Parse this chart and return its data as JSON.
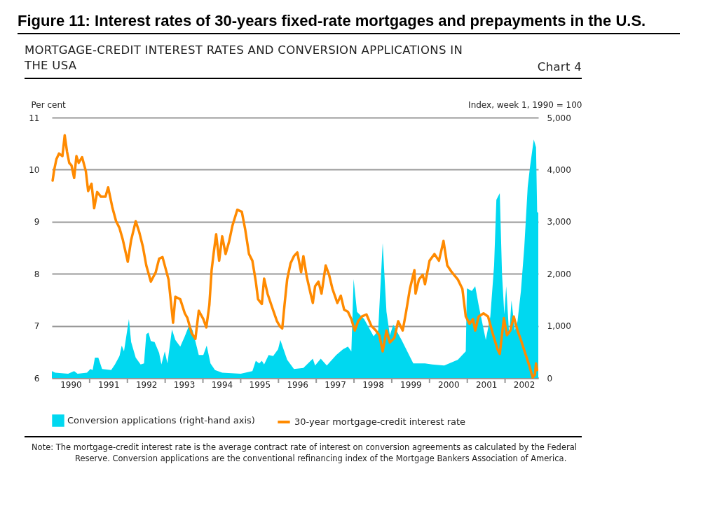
{
  "chart_data": {
    "type": "line",
    "title": "Figure 11: Interest rates of 30-years fixed-rate mortgages and prepayments in the U.S.",
    "subtitle": "MORTGAGE-CREDIT INTEREST RATES AND CONVERSION APPLICATIONS IN THE USA",
    "ylabel": "Per cent",
    "y2label": "Index, week 1, 1990 = 100",
    "annotations": [
      "Chart 4",
      "Note: The mortgage-credit interest rate is the average contract rate of interest on conversion agreements as calculated by the Federal Reserve. Conversion applications are the conventional refinancing index of the Mortgage Bankers Association of America."
    ],
    "xlim": [
      1990,
      2002.88
    ],
    "xticks": [
      {
        "value": 1990.5,
        "label": "1990"
      },
      {
        "value": 1991,
        "label": null
      },
      {
        "value": 1991.5,
        "label": "1991"
      },
      {
        "value": 1992,
        "label": null
      },
      {
        "value": 1992.5,
        "label": "1992"
      },
      {
        "value": 1993,
        "label": null
      },
      {
        "value": 1993.5,
        "label": "1993"
      },
      {
        "value": 1994,
        "label": null
      },
      {
        "value": 1994.5,
        "label": "1994"
      },
      {
        "value": 1995,
        "label": null
      },
      {
        "value": 1995.5,
        "label": "1995"
      },
      {
        "value": 1996,
        "label": null
      },
      {
        "value": 1996.5,
        "label": "1996"
      },
      {
        "value": 1997,
        "label": null
      },
      {
        "value": 1997.5,
        "label": "1997"
      },
      {
        "value": 1998,
        "label": null
      },
      {
        "value": 1998.5,
        "label": "1998"
      },
      {
        "value": 1999,
        "label": null
      },
      {
        "value": 1999.5,
        "label": "1999"
      },
      {
        "value": 2000,
        "label": null
      },
      {
        "value": 2000.5,
        "label": "2000"
      },
      {
        "value": 2001,
        "label": null
      },
      {
        "value": 2001.5,
        "label": "2001"
      },
      {
        "value": 2002,
        "label": null
      },
      {
        "value": 2002.5,
        "label": "2002"
      }
    ],
    "ylim": [
      6,
      11
    ],
    "yticks": [
      6,
      7,
      8,
      9,
      10,
      11
    ],
    "y2lim": [
      0,
      5000
    ],
    "y2ticks": [
      0,
      {
        "value": 1000,
        "label": "1,000"
      },
      {
        "value": 2000,
        "label": "2,000"
      },
      {
        "value": 3000,
        "label": "3,000"
      },
      {
        "value": 4000,
        "label": "4,000"
      },
      {
        "value": 5000,
        "label": "5,000"
      }
    ],
    "grid": "y",
    "legend": "bottom",
    "series": [
      {
        "name": "Conversion applications (right-hand axis)",
        "type": "area",
        "axis": "y2",
        "color": "#00d8f0",
        "x": [
          1990.0,
          1990.09,
          1990.43,
          1990.59,
          1990.68,
          1990.93,
          1991.02,
          1991.08,
          1991.14,
          1991.23,
          1991.33,
          1991.57,
          1991.67,
          1991.79,
          1991.85,
          1991.91,
          1992.04,
          1992.1,
          1992.22,
          1992.35,
          1992.44,
          1992.5,
          1992.56,
          1992.62,
          1992.72,
          1992.84,
          1992.9,
          1992.99,
          1993.06,
          1993.18,
          1993.27,
          1993.4,
          1993.52,
          1993.64,
          1993.73,
          1993.89,
          1994.01,
          1994.1,
          1994.2,
          1994.32,
          1994.51,
          1995.0,
          1995.31,
          1995.4,
          1995.49,
          1995.56,
          1995.62,
          1995.74,
          1995.86,
          1995.99,
          1996.05,
          1996.23,
          1996.41,
          1996.66,
          1996.91,
          1996.97,
          1997.12,
          1997.28,
          1997.53,
          1997.71,
          1997.84,
          1997.93,
          1997.99,
          1998.08,
          1998.27,
          1998.52,
          1998.64,
          1998.76,
          1998.86,
          1998.95,
          1999.04,
          1999.26,
          1999.41,
          1999.57,
          1999.88,
          2000.07,
          2000.39,
          2000.75,
          2000.96,
          2000.99,
          2001.12,
          2001.21,
          2001.3,
          2001.49,
          2001.61,
          2001.71,
          2001.77,
          2001.86,
          2001.92,
          2001.98,
          2002.03,
          2002.11,
          2002.17,
          2002.26,
          2002.33,
          2002.42,
          2002.51,
          2002.6,
          2002.66,
          2002.76,
          2002.82,
          2002.85,
          2002.88
        ],
        "values": [
          130,
          100,
          80,
          130,
          80,
          100,
          170,
          150,
          390,
          390,
          170,
          150,
          260,
          420,
          620,
          510,
          1130,
          690,
          390,
          260,
          280,
          840,
          870,
          710,
          690,
          480,
          260,
          510,
          280,
          930,
          730,
          600,
          800,
          1020,
          910,
          440,
          440,
          620,
          280,
          150,
          100,
          80,
          130,
          330,
          280,
          330,
          260,
          440,
          420,
          550,
          730,
          350,
          170,
          190,
          370,
          240,
          370,
          240,
          440,
          550,
          600,
          510,
          1900,
          1270,
          1130,
          800,
          910,
          2590,
          1270,
          820,
          1020,
          730,
          510,
          280,
          280,
          260,
          240,
          350,
          510,
          1720,
          1670,
          1760,
          1400,
          730,
          1180,
          2160,
          3420,
          3550,
          1990,
          1220,
          1760,
          820,
          1490,
          910,
          1090,
          1670,
          2520,
          3670,
          4050,
          4580,
          4430,
          3190,
          3170
        ]
      },
      {
        "name": "30-year mortgage-credit interest rate",
        "type": "line",
        "color": "#ff8a00",
        "x": [
          1990.02,
          1990.06,
          1990.12,
          1990.19,
          1990.28,
          1990.34,
          1990.4,
          1990.46,
          1990.52,
          1990.59,
          1990.65,
          1990.71,
          1990.8,
          1990.9,
          1990.96,
          1991.05,
          1991.12,
          1991.2,
          1991.3,
          1991.42,
          1991.49,
          1991.6,
          1991.7,
          1991.79,
          1991.88,
          1992.01,
          1992.1,
          1992.22,
          1992.31,
          1992.41,
          1992.5,
          1992.62,
          1992.75,
          1992.84,
          1992.93,
          1993.09,
          1993.21,
          1993.27,
          1993.4,
          1993.52,
          1993.59,
          1993.7,
          1993.8,
          1993.89,
          1994.01,
          1994.09,
          1994.17,
          1994.23,
          1994.29,
          1994.35,
          1994.43,
          1994.51,
          1994.6,
          1994.69,
          1994.78,
          1994.91,
          1995.03,
          1995.12,
          1995.22,
          1995.31,
          1995.4,
          1995.46,
          1995.56,
          1995.62,
          1995.71,
          1995.83,
          1995.96,
          1996.04,
          1996.1,
          1996.16,
          1996.23,
          1996.32,
          1996.41,
          1996.5,
          1996.6,
          1996.66,
          1996.75,
          1996.85,
          1996.91,
          1996.97,
          1997.06,
          1997.14,
          1997.25,
          1997.34,
          1997.43,
          1997.56,
          1997.65,
          1997.74,
          1997.84,
          1997.93,
          1998.02,
          1998.11,
          1998.21,
          1998.33,
          1998.46,
          1998.58,
          1998.67,
          1998.76,
          1998.86,
          1998.95,
          1999.07,
          1999.17,
          1999.29,
          1999.38,
          1999.48,
          1999.6,
          1999.63,
          1999.72,
          1999.82,
          1999.88,
          2000.0,
          2000.13,
          2000.25,
          2000.37,
          2000.47,
          2000.59,
          2000.75,
          2000.87,
          2000.96,
          2001.06,
          2001.15,
          2001.21,
          2001.3,
          2001.43,
          2001.55,
          2001.67,
          2001.8,
          2001.86,
          2001.97,
          2002.05,
          2002.14,
          2002.23,
          2002.33,
          2002.42,
          2002.54,
          2002.64,
          2002.73,
          2002.79,
          2002.82,
          2002.85
        ],
        "values": [
          9.79,
          9.99,
          10.2,
          10.31,
          10.26,
          10.66,
          10.35,
          10.13,
          10.08,
          9.84,
          10.26,
          10.13,
          10.24,
          9.97,
          9.59,
          9.73,
          9.26,
          9.57,
          9.48,
          9.48,
          9.66,
          9.28,
          9.01,
          8.88,
          8.65,
          8.23,
          8.65,
          9.01,
          8.81,
          8.52,
          8.16,
          7.85,
          8.03,
          8.29,
          8.32,
          7.89,
          7.06,
          7.56,
          7.51,
          7.24,
          7.15,
          6.86,
          6.75,
          7.29,
          7.13,
          6.97,
          7.4,
          8.07,
          8.43,
          8.76,
          8.25,
          8.72,
          8.38,
          8.61,
          8.92,
          9.23,
          9.19,
          8.85,
          8.38,
          8.25,
          7.85,
          7.51,
          7.42,
          7.91,
          7.62,
          7.36,
          7.09,
          6.99,
          6.95,
          7.4,
          7.89,
          8.2,
          8.34,
          8.41,
          8.03,
          8.34,
          7.94,
          7.62,
          7.44,
          7.76,
          7.85,
          7.62,
          8.16,
          7.98,
          7.71,
          7.44,
          7.58,
          7.31,
          7.27,
          7.13,
          6.91,
          7.09,
          7.18,
          7.22,
          7.0,
          6.91,
          6.82,
          6.51,
          6.91,
          6.68,
          6.77,
          7.09,
          6.91,
          7.27,
          7.71,
          8.07,
          7.62,
          7.89,
          7.98,
          7.8,
          8.25,
          8.38,
          8.25,
          8.63,
          8.16,
          8.03,
          7.89,
          7.71,
          7.18,
          7.04,
          7.13,
          6.91,
          7.18,
          7.24,
          7.18,
          6.86,
          6.55,
          6.46,
          7.15,
          6.82,
          6.91,
          7.18,
          6.91,
          6.73,
          6.46,
          6.24,
          6.01,
          6.06,
          6.28,
          6.15
        ]
      }
    ]
  }
}
